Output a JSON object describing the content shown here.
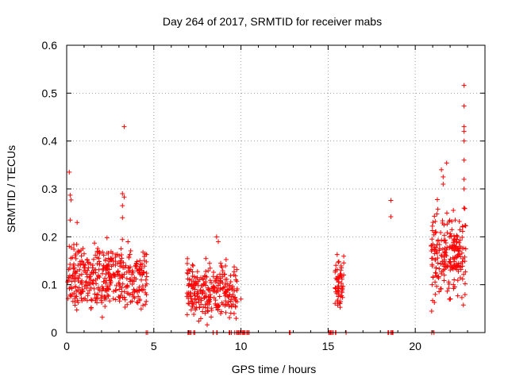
{
  "chart_data": {
    "type": "scatter",
    "title": "Day 264 of 2017, SRMTID for receiver mabs",
    "xlabel": "GPS time / hours",
    "ylabel": "SRMTID / TECUs",
    "xlim": [
      0,
      24
    ],
    "ylim": [
      0,
      0.6
    ],
    "xticks": [
      0,
      5,
      10,
      15,
      20
    ],
    "xtick_labels": [
      "0",
      "5",
      "10",
      "15",
      "20"
    ],
    "yticks": [
      0,
      0.1,
      0.2,
      0.3,
      0.4,
      0.5,
      0.6
    ],
    "ytick_labels": [
      "0",
      "0.1",
      "0.2",
      "0.3",
      "0.4",
      "0.5",
      "0.6"
    ],
    "grid": true,
    "marker": "+",
    "color": "#ff0000",
    "series": [
      {
        "name": "SRMTID",
        "clusters": [
          {
            "x_range": [
              0.0,
              4.6
            ],
            "y_range": [
              0.02,
              0.21
            ],
            "count": 420
          },
          {
            "x_range": [
              6.9,
              9.8
            ],
            "y_range": [
              0.0,
              0.17
            ],
            "count": 260
          },
          {
            "x_range": [
              15.4,
              15.9
            ],
            "y_range": [
              0.02,
              0.18
            ],
            "count": 60
          },
          {
            "x_range": [
              20.9,
              22.9
            ],
            "y_range": [
              0.02,
              0.3
            ],
            "count": 220
          }
        ],
        "points": [
          [
            0.15,
            0.335
          ],
          [
            0.2,
            0.287
          ],
          [
            0.25,
            0.277
          ],
          [
            0.2,
            0.235
          ],
          [
            0.6,
            0.23
          ],
          [
            3.3,
            0.43
          ],
          [
            3.2,
            0.29
          ],
          [
            3.3,
            0.283
          ],
          [
            3.2,
            0.265
          ],
          [
            3.2,
            0.24
          ],
          [
            8.6,
            0.2
          ],
          [
            8.7,
            0.19
          ],
          [
            10.0,
            0.07
          ],
          [
            18.6,
            0.276
          ],
          [
            18.6,
            0.242
          ],
          [
            22.8,
            0.516
          ],
          [
            22.8,
            0.473
          ],
          [
            22.8,
            0.43
          ],
          [
            22.8,
            0.42
          ],
          [
            22.8,
            0.4
          ],
          [
            22.8,
            0.36
          ],
          [
            22.8,
            0.32
          ],
          [
            22.8,
            0.3
          ],
          [
            22.8,
            0.26
          ],
          [
            21.8,
            0.354
          ],
          [
            21.5,
            0.34
          ],
          [
            21.6,
            0.325
          ],
          [
            21.6,
            0.31
          ]
        ],
        "zero_values_x": [
          4.6,
          7.0,
          7.1,
          7.3,
          8.4,
          8.6,
          9.3,
          9.4,
          9.7,
          9.8,
          9.9,
          10.0,
          10.1,
          10.2,
          10.3,
          10.4,
          12.8,
          15.1,
          15.2,
          15.3,
          15.4,
          16.0,
          18.5,
          18.6,
          18.7,
          21.0
        ]
      }
    ]
  }
}
